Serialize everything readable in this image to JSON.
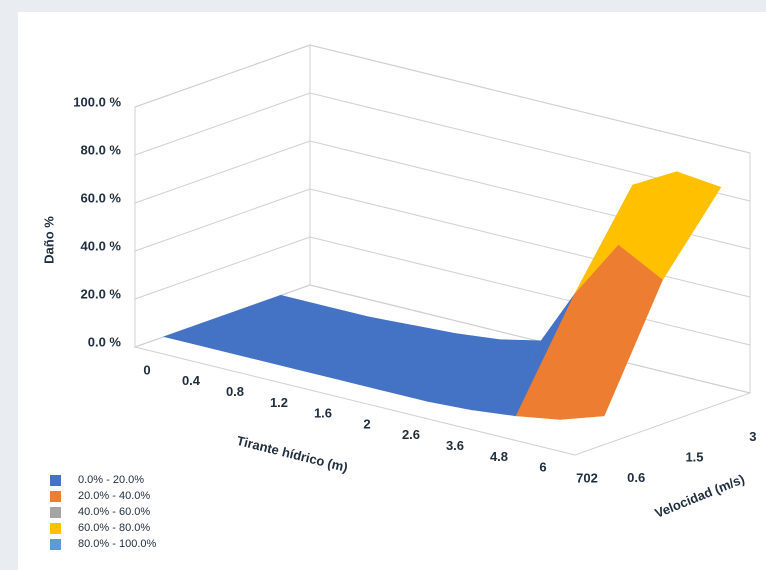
{
  "chart_data": {
    "type": "surface",
    "y_label": "Daño %",
    "x_label": "Tirante hídrico (m)",
    "z_label": "Velocidad (m/s)",
    "categories": [
      "0",
      "0.4",
      "0.8",
      "1.2",
      "1.6",
      "2",
      "2.6",
      "3.6",
      "4.8",
      "6",
      "702"
    ],
    "depth_categories": [
      "0.6",
      "1.5",
      "3"
    ],
    "series": [
      {
        "name": "0.6",
        "values": [
          0,
          0,
          0,
          0,
          0,
          0,
          0,
          1,
          3,
          6,
          12
        ]
      },
      {
        "name": "1.5",
        "values": [
          0,
          0,
          0,
          0,
          0,
          1,
          3,
          15,
          45,
          70,
          60
        ]
      },
      {
        "name": "3",
        "values": [
          0,
          0,
          0,
          1,
          2,
          4,
          8,
          35,
          82,
          92,
          90
        ]
      }
    ],
    "ylim": [
      0,
      100
    ],
    "yticks": [
      {
        "value": 0,
        "label": "0.0 %"
      },
      {
        "value": 20,
        "label": "20.0 %"
      },
      {
        "value": 40,
        "label": "40.0 %"
      },
      {
        "value": 60,
        "label": "60.0 %"
      },
      {
        "value": 80,
        "label": "80.0 %"
      },
      {
        "value": 100,
        "label": "100.0 %"
      }
    ],
    "grid": true,
    "bands": [
      {
        "name": "0.0% - 20.0%",
        "color": "#4472c4",
        "min": 0,
        "max": 20
      },
      {
        "name": "20.0% - 40.0%",
        "color": "#ed7d31",
        "min": 20,
        "max": 40
      },
      {
        "name": "40.0% - 60.0%",
        "color": "#a5a5a5",
        "min": 40,
        "max": 60
      },
      {
        "name": "60.0% - 80.0%",
        "color": "#ffc000",
        "min": 60,
        "max": 80
      },
      {
        "name": "80.0% - 100.0%",
        "color": "#5b9bd5",
        "min": 80,
        "max": 100
      }
    ]
  }
}
